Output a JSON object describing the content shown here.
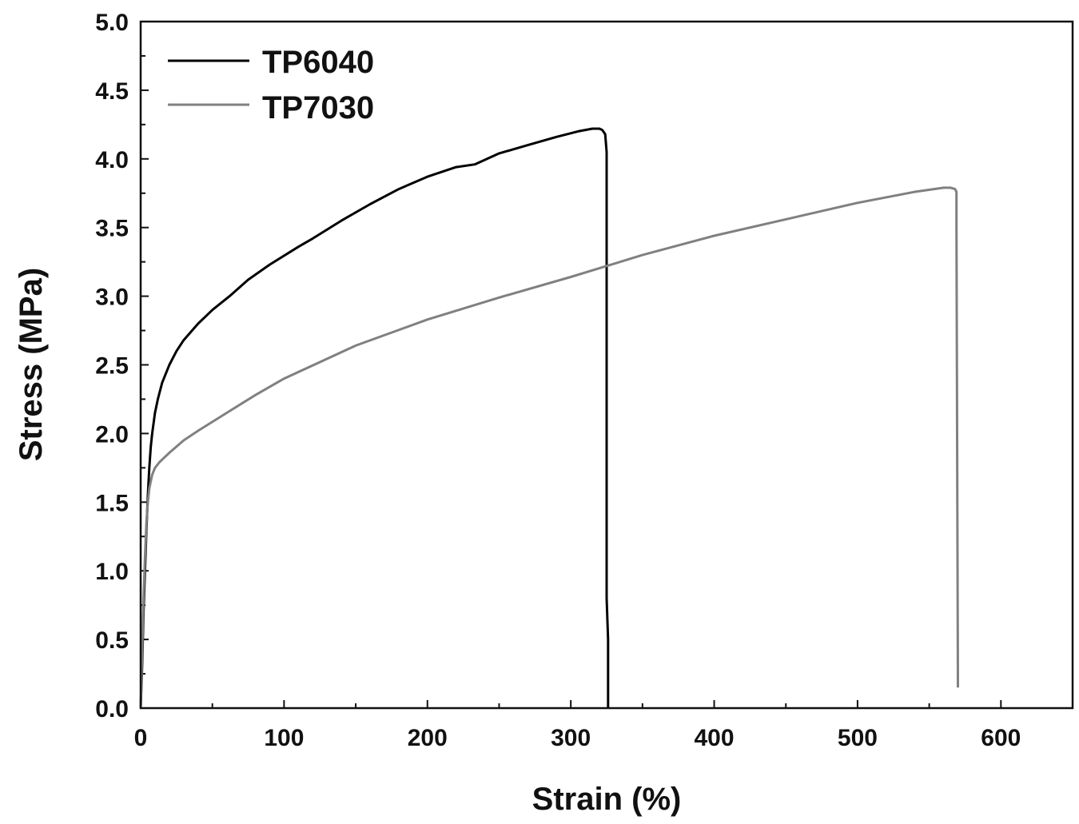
{
  "chart_data": {
    "type": "line",
    "title": "",
    "xlabel": "Strain (%)",
    "ylabel": "Stress (MPa)",
    "xlim": [
      0,
      650
    ],
    "ylim": [
      0,
      5.0
    ],
    "grid": false,
    "legend_position": "top-left",
    "x_ticks": [
      0,
      100,
      200,
      300,
      400,
      500,
      600
    ],
    "x_tick_labels": [
      "0",
      "100",
      "200",
      "300",
      "400",
      "500",
      "600"
    ],
    "y_ticks": [
      0,
      0.5,
      1.0,
      1.5,
      2.0,
      2.5,
      3.0,
      3.5,
      4.0,
      4.5,
      5.0
    ],
    "y_tick_labels": [
      "0.0",
      "0.5",
      "1.0",
      "1.5",
      "2.0",
      "2.5",
      "3.0",
      "3.5",
      "4.0",
      "4.5",
      "5.0"
    ],
    "series": [
      {
        "name": "TP6040",
        "color": "#000000",
        "x": [
          0,
          1,
          2,
          3,
          4,
          5,
          6,
          7,
          8,
          10,
          12,
          15,
          20,
          25,
          30,
          40,
          50,
          62,
          75,
          90,
          110,
          120,
          140,
          160,
          180,
          200,
          220,
          233,
          250,
          270,
          290,
          305,
          315,
          320,
          322,
          324,
          325,
          325,
          326,
          326
        ],
        "y": [
          0,
          0.3,
          0.7,
          1.0,
          1.3,
          1.55,
          1.75,
          1.9,
          2.0,
          2.15,
          2.25,
          2.37,
          2.5,
          2.6,
          2.68,
          2.8,
          2.9,
          3.0,
          3.12,
          3.23,
          3.36,
          3.42,
          3.55,
          3.67,
          3.78,
          3.87,
          3.94,
          3.96,
          4.04,
          4.1,
          4.16,
          4.2,
          4.22,
          4.22,
          4.21,
          4.18,
          4.05,
          0.8,
          0.5,
          0.0
        ]
      },
      {
        "name": "TP7030",
        "color": "#808080",
        "x": [
          0,
          1,
          2,
          3,
          4,
          5,
          6,
          8,
          10,
          13,
          16,
          20,
          30,
          40,
          60,
          80,
          100,
          150,
          200,
          250,
          300,
          350,
          400,
          450,
          500,
          540,
          560,
          565,
          568,
          569,
          569,
          570
        ],
        "y": [
          0,
          0.4,
          0.8,
          1.1,
          1.35,
          1.5,
          1.6,
          1.7,
          1.75,
          1.79,
          1.82,
          1.86,
          1.95,
          2.02,
          2.15,
          2.28,
          2.4,
          2.64,
          2.83,
          2.99,
          3.14,
          3.3,
          3.44,
          3.56,
          3.68,
          3.76,
          3.79,
          3.79,
          3.78,
          3.76,
          3.5,
          0.15
        ]
      }
    ]
  }
}
